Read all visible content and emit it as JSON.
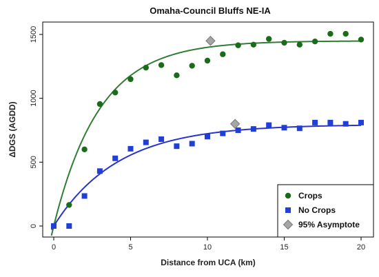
{
  "chart_data": {
    "type": "scatter",
    "title": "Omaha-Council Bluffs NE-IA",
    "xlabel": "Distance from UCA (km)",
    "ylabel": "ΔDGS (AGDD)",
    "xlim": [
      0,
      20
    ],
    "ylim": [
      0,
      1550
    ],
    "x_ticks": [
      0,
      5,
      10,
      15,
      20
    ],
    "y_ticks": [
      0,
      500,
      1000,
      1500
    ],
    "grid": false,
    "legend_position": "bottom-right",
    "series": [
      {
        "name": "Crops",
        "marker": "circle",
        "color": "#1a6b1a",
        "x": [
          0,
          1,
          2,
          3,
          4,
          5,
          6,
          7,
          8,
          9,
          10,
          11,
          12,
          13,
          14,
          15,
          16,
          17,
          18,
          19,
          20
        ],
        "y": [
          0,
          165,
          600,
          955,
          1045,
          1150,
          1240,
          1260,
          1180,
          1255,
          1295,
          1345,
          1415,
          1420,
          1465,
          1435,
          1420,
          1445,
          1505,
          1505,
          1460
        ],
        "fit": {
          "asymptote": 1450,
          "rate": 0.335,
          "color": "#2e7d32"
        }
      },
      {
        "name": "No Crops",
        "marker": "square",
        "color": "#1f3fd6",
        "x": [
          0,
          1,
          2,
          3,
          4,
          5,
          6,
          7,
          8,
          9,
          10,
          11,
          12,
          13,
          14,
          15,
          16,
          17,
          18,
          19,
          20
        ],
        "y": [
          0,
          0,
          235,
          430,
          530,
          605,
          655,
          680,
          625,
          645,
          700,
          725,
          750,
          760,
          790,
          770,
          765,
          810,
          810,
          800,
          810
        ],
        "fit": {
          "asymptote": 795,
          "rate": 0.24,
          "color": "#2732d1"
        }
      },
      {
        "name": "95% Asymptote",
        "marker": "diamond",
        "color": "#a6a6a6",
        "x": [
          10.2,
          11.8
        ],
        "y": [
          1450,
          800
        ]
      }
    ]
  }
}
